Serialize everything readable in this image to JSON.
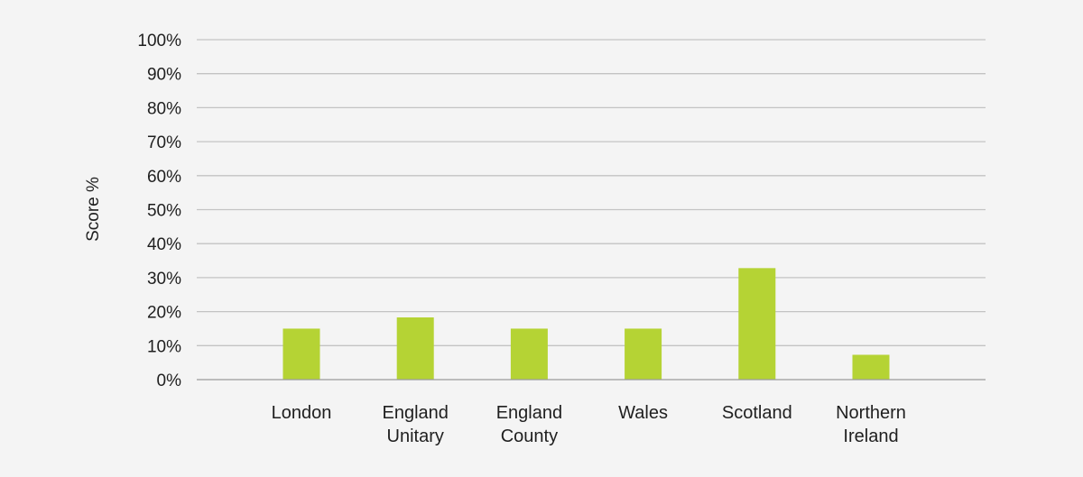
{
  "chart_data": {
    "type": "bar",
    "title": "",
    "xlabel": "",
    "ylabel": "Score %",
    "ylim": [
      0,
      100
    ],
    "ytick_labels": [
      "0%",
      "10%",
      "20%",
      "30%",
      "40%",
      "50%",
      "60%",
      "70%",
      "80%",
      "90%",
      "100%"
    ],
    "categories": [
      [
        "London"
      ],
      [
        "England",
        "Unitary"
      ],
      [
        "England",
        "County"
      ],
      [
        "Wales"
      ],
      [
        "Scotland"
      ],
      [
        "Northern",
        "Ireland"
      ]
    ],
    "values": [
      15,
      18.3,
      15,
      15,
      32.8,
      7.3
    ],
    "bar_color": "#b5d334",
    "grid": true,
    "legend": "none"
  }
}
